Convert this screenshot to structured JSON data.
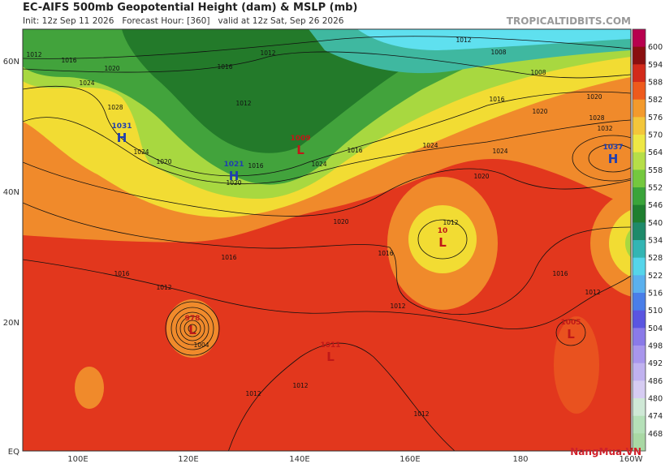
{
  "header": {
    "title": "EC-AIFS 500mb Geopotential Height (dam) & MSLP (mb)",
    "subtitle": "Init: 12z Sep 11 2026   Forecast Hour: [360]   valid at 12z Sat, Sep 26 2026",
    "site": "TROPICALTIDBITS.COM"
  },
  "map": {
    "lat_labels": [
      "60N",
      "40N",
      "20N",
      "EQ"
    ],
    "lon_labels": [
      "100E",
      "120E",
      "140E",
      "160E",
      "180",
      "160W"
    ],
    "pressure_centers": [
      {
        "symbol": "H",
        "value": "1031"
      },
      {
        "symbol": "H",
        "value": "1021"
      },
      {
        "symbol": "L",
        "value": "1009"
      },
      {
        "symbol": "H",
        "value": "1037"
      },
      {
        "symbol": "L",
        "value": "10"
      },
      {
        "symbol": "L",
        "value": "1011"
      },
      {
        "symbol": "L",
        "value": "1005"
      },
      {
        "symbol": "L",
        "value": "978"
      }
    ],
    "isobar_labels": [
      1012,
      1016,
      1020,
      1024,
      1028,
      1024,
      1020,
      1016,
      1012,
      1012,
      1016,
      1020,
      1024,
      1016,
      1012,
      1008,
      1008,
      1016,
      1020,
      1020,
      1028,
      1032,
      1024,
      1024,
      1020,
      1020,
      1016,
      1012,
      1016,
      1016,
      1012,
      1016,
      1012,
      1012,
      1012,
      1012,
      1012,
      1004
    ]
  },
  "colorbar": {
    "labels": [
      600,
      594,
      588,
      582,
      576,
      570,
      564,
      558,
      552,
      546,
      540,
      534,
      528,
      522,
      516,
      510,
      504,
      498,
      492,
      486,
      480,
      474,
      468
    ]
  },
  "watermark": "NangMua.VN"
}
